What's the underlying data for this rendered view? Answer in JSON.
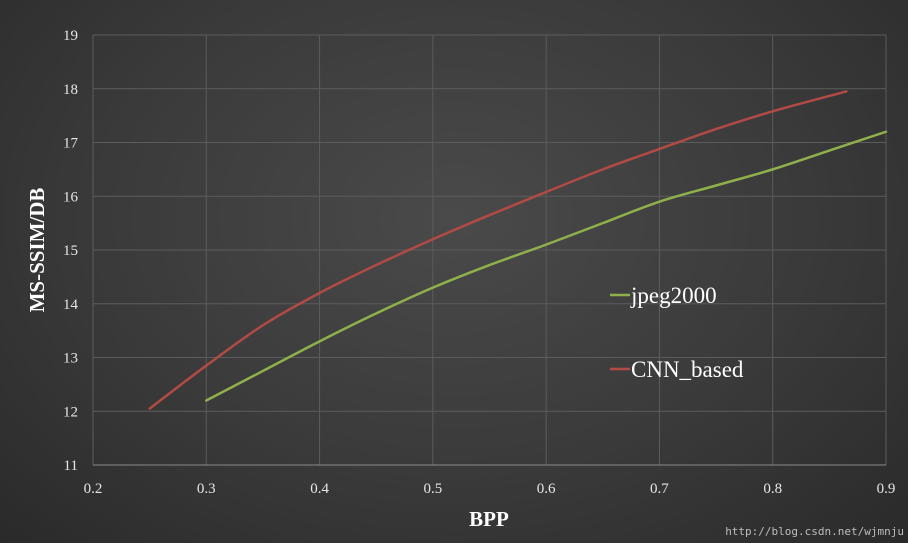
{
  "chart_data": {
    "type": "line",
    "xlabel": "BPP",
    "ylabel": "MS-SSIM/DB",
    "xlim": [
      0.2,
      0.9
    ],
    "ylim": [
      11,
      19
    ],
    "xticks": [
      "0.2",
      "0.3",
      "0.4",
      "0.5",
      "0.6",
      "0.7",
      "0.8",
      "0.9"
    ],
    "yticks": [
      "11",
      "12",
      "13",
      "14",
      "15",
      "16",
      "17",
      "18",
      "19"
    ],
    "grid": true,
    "legend_position": "right",
    "series": [
      {
        "name": "jpeg2000",
        "color": "#8fb04b",
        "x": [
          0.3,
          0.35,
          0.4,
          0.45,
          0.5,
          0.55,
          0.6,
          0.65,
          0.7,
          0.75,
          0.8,
          0.85,
          0.9
        ],
        "y": [
          12.2,
          12.75,
          13.3,
          13.82,
          14.3,
          14.72,
          15.1,
          15.5,
          15.9,
          16.2,
          16.5,
          16.85,
          17.2
        ]
      },
      {
        "name": "CNN_based",
        "color": "#b14a45",
        "x": [
          0.25,
          0.3,
          0.35,
          0.4,
          0.45,
          0.5,
          0.55,
          0.6,
          0.65,
          0.7,
          0.75,
          0.8,
          0.865
        ],
        "y": [
          12.05,
          12.85,
          13.6,
          14.2,
          14.72,
          15.2,
          15.65,
          16.08,
          16.5,
          16.88,
          17.25,
          17.58,
          17.95
        ]
      }
    ]
  },
  "watermark": "http://blog.csdn.net/wjmnju"
}
